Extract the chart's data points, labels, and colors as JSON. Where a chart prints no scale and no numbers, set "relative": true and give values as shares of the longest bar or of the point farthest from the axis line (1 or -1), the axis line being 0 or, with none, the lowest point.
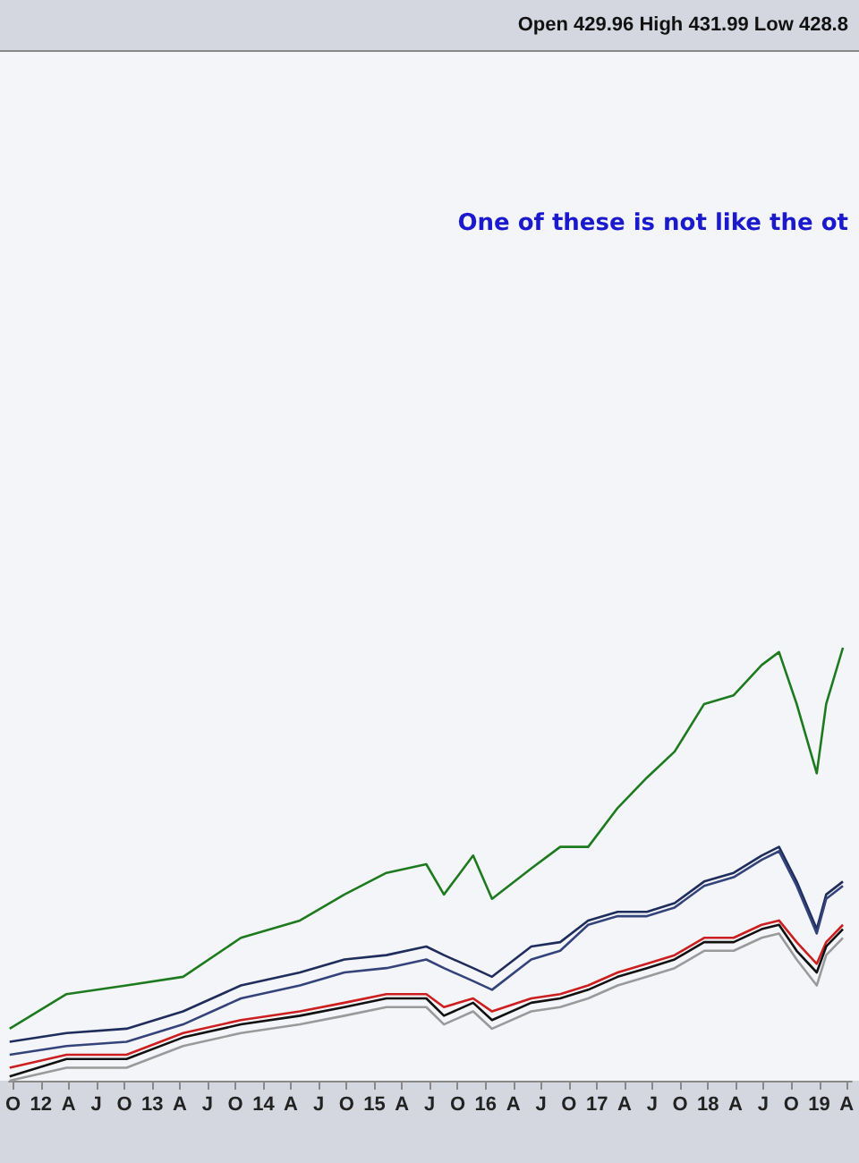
{
  "chart_data": {
    "type": "line",
    "relative": true,
    "annotations": [
      "Open 429.96 High 431.99 Low 428.8",
      "One of these is not like the ot"
    ],
    "x": [
      "2011-09-20",
      "2012-03-25",
      "2012-10-08",
      "2013-04-12",
      "2013-10-19",
      "2014-05-01",
      "2014-09-24",
      "2015-02-09",
      "2015-06-20",
      "2015-08-17",
      "2015-11-21",
      "2016-01-22",
      "2016-05-30",
      "2016-09-02",
      "2016-12-03",
      "2017-03-10",
      "2017-06-14",
      "2017-09-13",
      "2017-12-19",
      "2018-03-26",
      "2018-06-26",
      "2018-08-22",
      "2018-10-19",
      "2018-12-24",
      "2019-01-24",
      "2019-03-20"
    ],
    "xlim": [
      "2011-09-18",
      "2019-04-18"
    ],
    "xticks": [
      {
        "value": "2011-10",
        "label": "O"
      },
      {
        "value": "2012-01",
        "label": "12"
      },
      {
        "value": "2012-04",
        "label": "A"
      },
      {
        "value": "2012-07",
        "label": "J"
      },
      {
        "value": "2012-10",
        "label": "O"
      },
      {
        "value": "2013-01",
        "label": "13"
      },
      {
        "value": "2013-04",
        "label": "A"
      },
      {
        "value": "2013-07",
        "label": "J"
      },
      {
        "value": "2013-10",
        "label": "O"
      },
      {
        "value": "2014-01",
        "label": "14"
      },
      {
        "value": "2014-04",
        "label": "A"
      },
      {
        "value": "2014-07",
        "label": "J"
      },
      {
        "value": "2014-10",
        "label": "O"
      },
      {
        "value": "2015-01",
        "label": "15"
      },
      {
        "value": "2015-04",
        "label": "A"
      },
      {
        "value": "2015-07",
        "label": "J"
      },
      {
        "value": "2015-10",
        "label": "O"
      },
      {
        "value": "2016-01",
        "label": "16"
      },
      {
        "value": "2016-04",
        "label": "A"
      },
      {
        "value": "2016-07",
        "label": "J"
      },
      {
        "value": "2016-10",
        "label": "O"
      },
      {
        "value": "2017-01",
        "label": "17"
      },
      {
        "value": "2017-04",
        "label": "A"
      },
      {
        "value": "2017-07",
        "label": "J"
      },
      {
        "value": "2017-10",
        "label": "O"
      },
      {
        "value": "2018-01",
        "label": "18"
      },
      {
        "value": "2018-04",
        "label": "A"
      },
      {
        "value": "2018-07",
        "label": "J"
      },
      {
        "value": "2018-10",
        "label": "O"
      },
      {
        "value": "2019-01",
        "label": "19"
      },
      {
        "value": "2019-04",
        "label": "A"
      }
    ],
    "series": [
      {
        "color": "#1e7a1e",
        "values": [
          0.12,
          0.2,
          0.22,
          0.24,
          0.33,
          0.37,
          0.43,
          0.48,
          0.5,
          0.43,
          0.52,
          0.42,
          0.49,
          0.54,
          0.54,
          0.63,
          0.7,
          0.76,
          0.87,
          0.89,
          0.96,
          0.99,
          0.87,
          0.71,
          0.87,
          1
        ]
      },
      {
        "color": "#1f2d5c",
        "values": [
          0.09,
          0.11,
          0.12,
          0.16,
          0.22,
          0.25,
          0.28,
          0.29,
          0.31,
          0.29,
          0.26,
          0.24,
          0.31,
          0.32,
          0.37,
          0.39,
          0.39,
          0.41,
          0.46,
          0.48,
          0.52,
          0.54,
          0.46,
          0.35,
          0.43,
          0.46
        ]
      },
      {
        "color": "#34447a",
        "values": [
          0.06,
          0.08,
          0.09,
          0.13,
          0.19,
          0.22,
          0.25,
          0.26,
          0.28,
          0.26,
          0.23,
          0.21,
          0.28,
          0.3,
          0.36,
          0.38,
          0.38,
          0.4,
          0.45,
          0.47,
          0.51,
          0.53,
          0.45,
          0.34,
          0.42,
          0.45
        ]
      },
      {
        "color": "#cc1f1f",
        "values": [
          0.03,
          0.06,
          0.06,
          0.11,
          0.14,
          0.16,
          0.18,
          0.2,
          0.2,
          0.17,
          0.19,
          0.16,
          0.19,
          0.2,
          0.22,
          0.25,
          0.27,
          0.29,
          0.33,
          0.33,
          0.36,
          0.37,
          0.32,
          0.27,
          0.32,
          0.36
        ]
      },
      {
        "color": "#111111",
        "values": [
          0.01,
          0.05,
          0.05,
          0.1,
          0.13,
          0.15,
          0.17,
          0.19,
          0.19,
          0.15,
          0.18,
          0.14,
          0.18,
          0.19,
          0.21,
          0.24,
          0.26,
          0.28,
          0.32,
          0.32,
          0.35,
          0.36,
          0.3,
          0.25,
          0.31,
          0.35
        ]
      },
      {
        "color": "#9a9a9a",
        "values": [
          0,
          0.03,
          0.03,
          0.08,
          0.11,
          0.13,
          0.15,
          0.17,
          0.17,
          0.13,
          0.16,
          0.12,
          0.16,
          0.17,
          0.19,
          0.22,
          0.24,
          0.26,
          0.3,
          0.3,
          0.33,
          0.34,
          0.28,
          0.22,
          0.29,
          0.33
        ]
      }
    ]
  }
}
